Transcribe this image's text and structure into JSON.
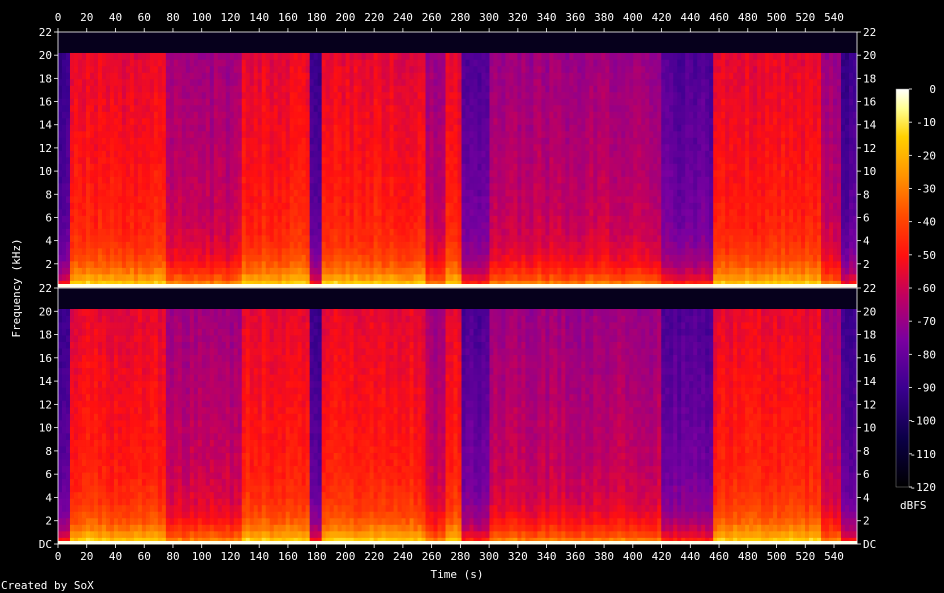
{
  "chart_data": {
    "type": "heatmap",
    "title": "",
    "xlabel": "Time (s)",
    "ylabel": "Frequency (kHz)",
    "xlim": [
      0,
      556
    ],
    "ylim": [
      0,
      22
    ],
    "x_ticks": [
      "0",
      "20",
      "40",
      "60",
      "80",
      "100",
      "120",
      "140",
      "160",
      "180",
      "200",
      "220",
      "240",
      "260",
      "280",
      "300",
      "320",
      "340",
      "360",
      "380",
      "400",
      "420",
      "440",
      "460",
      "480",
      "500",
      "520",
      "540"
    ],
    "y_ticks": [
      "DC",
      "2",
      "4",
      "6",
      "8",
      "10",
      "12",
      "14",
      "16",
      "18",
      "20",
      "22"
    ],
    "y_ticks_upper": [
      "2",
      "4",
      "6",
      "8",
      "10",
      "12",
      "14",
      "16",
      "18",
      "20",
      "22"
    ],
    "colorbar": {
      "label": "dBFS",
      "ticks": [
        "0",
        "-10",
        "-20",
        "-30",
        "-40",
        "-50",
        "-60",
        "-70",
        "-80",
        "-90",
        "-100",
        "-110",
        "-120"
      ],
      "range": [
        -120,
        0
      ]
    },
    "channels": 2,
    "bandwidth_khz": 20.2,
    "segments": [
      {
        "start": 0,
        "end": 8,
        "level": "low"
      },
      {
        "start": 8,
        "end": 75,
        "level": "loud"
      },
      {
        "start": 75,
        "end": 128,
        "level": "medium"
      },
      {
        "start": 128,
        "end": 176,
        "level": "loud"
      },
      {
        "start": 176,
        "end": 183,
        "level": "low"
      },
      {
        "start": 183,
        "end": 255,
        "level": "loud"
      },
      {
        "start": 255,
        "end": 270,
        "level": "medium"
      },
      {
        "start": 270,
        "end": 280,
        "level": "loud"
      },
      {
        "start": 280,
        "end": 300,
        "level": "quiet"
      },
      {
        "start": 300,
        "end": 420,
        "level": "medium"
      },
      {
        "start": 420,
        "end": 455,
        "level": "quiet"
      },
      {
        "start": 455,
        "end": 530,
        "level": "loud"
      },
      {
        "start": 530,
        "end": 545,
        "level": "medium"
      },
      {
        "start": 545,
        "end": 556,
        "level": "low"
      }
    ],
    "colors": {
      "background": "#000000",
      "scale": [
        "#000000",
        "#0b0046",
        "#3b0090",
        "#7a00a0",
        "#c00060",
        "#ff1010",
        "#ff4a00",
        "#ff9200",
        "#ffd000",
        "#ffff90",
        "#ffffff"
      ]
    }
  },
  "footer": {
    "credit": "Created by SoX"
  }
}
